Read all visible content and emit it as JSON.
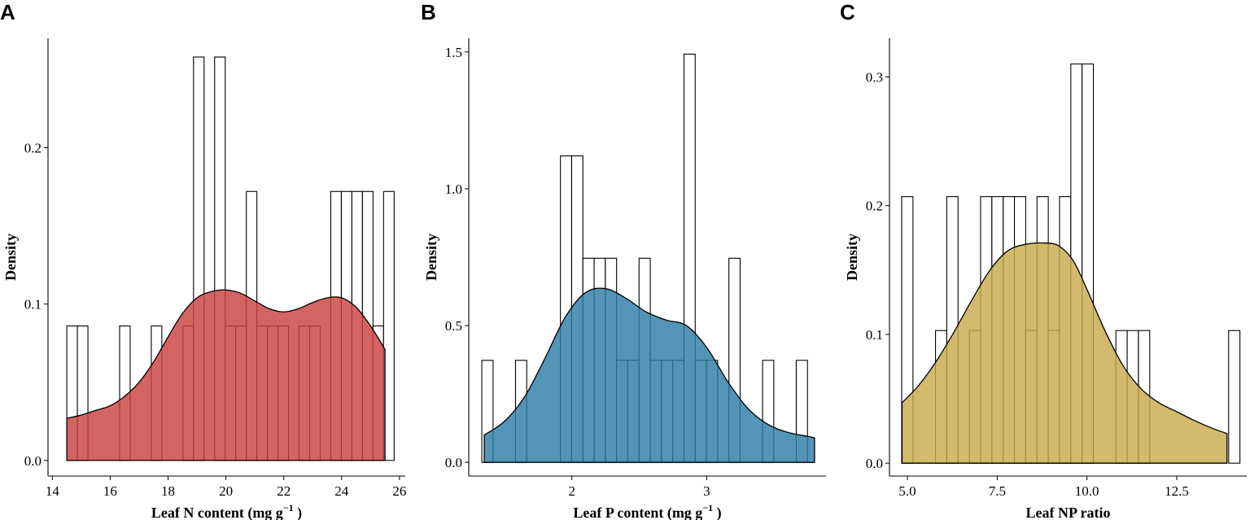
{
  "chart_data": [
    {
      "type": "histogram_density",
      "panel_label": "A",
      "xlabel_main": "Leaf N content (mg  g",
      "xlabel_sup": "−1",
      "xlabel_tail": " )",
      "ylabel": "Density",
      "fill_color": "#CB4240",
      "xlim": [
        13.85,
        26.2
      ],
      "ylim": [
        -0.01,
        0.27
      ],
      "x_ticks": [
        14,
        16,
        18,
        20,
        22,
        24,
        26
      ],
      "y_ticks": [
        0.0,
        0.1,
        0.2
      ],
      "y_tick_labels": [
        "0.0",
        "0.1",
        "0.2"
      ],
      "bin_start": 14.5,
      "bin_width": 0.365,
      "bar_heights": [
        0.086,
        0.086,
        0,
        0,
        0,
        0.086,
        0,
        0,
        0.086,
        0,
        0,
        0.086,
        0.258,
        0,
        0.258,
        0.086,
        0.086,
        0.172,
        0.086,
        0.086,
        0.086,
        0,
        0.086,
        0.086,
        0,
        0.172,
        0.172,
        0.172,
        0.172,
        0.086,
        0.172
      ],
      "density_x": [
        14.5,
        15.0,
        15.5,
        16.0,
        16.5,
        17.0,
        17.5,
        18.0,
        18.5,
        19.0,
        19.5,
        20.0,
        20.5,
        21.0,
        21.5,
        22.0,
        22.5,
        23.0,
        23.5,
        24.0,
        24.5,
        25.0,
        25.5
      ],
      "density_y": [
        0.027,
        0.029,
        0.032,
        0.035,
        0.041,
        0.05,
        0.063,
        0.079,
        0.094,
        0.104,
        0.108,
        0.109,
        0.107,
        0.102,
        0.097,
        0.095,
        0.097,
        0.101,
        0.104,
        0.104,
        0.098,
        0.086,
        0.071
      ]
    },
    {
      "type": "histogram_density",
      "panel_label": "B",
      "xlabel_main": "Leaf P content (mg  g",
      "xlabel_sup": "−1",
      "xlabel_tail": " )",
      "ylabel": "Density",
      "fill_color": "#2E7CA6",
      "xlim": [
        1.235,
        3.885
      ],
      "ylim": [
        -0.05,
        1.55
      ],
      "x_ticks": [
        2,
        3
      ],
      "y_ticks": [
        0.0,
        0.5,
        1.0,
        1.5
      ],
      "y_tick_labels": [
        "0.0",
        "0.5",
        "1.0",
        "1.5"
      ],
      "bin_start": 1.332,
      "bin_width": 0.0833,
      "bar_heights": [
        0.373,
        0,
        0,
        0.373,
        0,
        0,
        0,
        1.12,
        1.12,
        0.746,
        0.746,
        0.746,
        0.373,
        0.373,
        0.746,
        0.373,
        0.373,
        0.373,
        1.492,
        0.373,
        0.373,
        0,
        0.746,
        0,
        0,
        0.373,
        0,
        0,
        0.373
      ],
      "density_x": [
        1.35,
        1.5,
        1.65,
        1.8,
        1.95,
        2.1,
        2.25,
        2.4,
        2.55,
        2.7,
        2.85,
        3.0,
        3.15,
        3.3,
        3.45,
        3.6,
        3.75,
        3.8
      ],
      "density_y": [
        0.1,
        0.15,
        0.24,
        0.38,
        0.53,
        0.62,
        0.635,
        0.6,
        0.55,
        0.52,
        0.5,
        0.42,
        0.3,
        0.2,
        0.14,
        0.11,
        0.095,
        0.09
      ]
    },
    {
      "type": "histogram_density",
      "panel_label": "C",
      "xlabel_main": "Leaf NP ratio",
      "xlabel_sup": "",
      "xlabel_tail": "",
      "ylabel": "Density",
      "fill_color": "#C8AA4A",
      "xlim": [
        4.5,
        14.45
      ],
      "ylim": [
        -0.01,
        0.33
      ],
      "x_ticks": [
        5.0,
        7.5,
        10.0,
        12.5
      ],
      "x_tick_labels": [
        "5.0",
        "7.5",
        "10.0",
        "12.5"
      ],
      "y_ticks": [
        0.0,
        0.1,
        0.2,
        0.3
      ],
      "y_tick_labels": [
        "0.0",
        "0.1",
        "0.2",
        "0.3"
      ],
      "bin_start": 4.84,
      "bin_width": 0.314,
      "bar_heights": [
        0.207,
        0,
        0,
        0.103,
        0.207,
        0,
        0.103,
        0.207,
        0.207,
        0.207,
        0.207,
        0.103,
        0.207,
        0.103,
        0.207,
        0.31,
        0.31,
        0,
        0,
        0.103,
        0.103,
        0.103,
        0,
        0,
        0,
        0,
        0,
        0,
        0,
        0.103
      ],
      "density_x": [
        4.85,
        5.3,
        5.8,
        6.3,
        6.8,
        7.3,
        7.8,
        8.3,
        8.8,
        9.2,
        9.6,
        10.0,
        10.5,
        11.0,
        11.5,
        12.0,
        12.5,
        13.0,
        13.5,
        13.9
      ],
      "density_y": [
        0.047,
        0.06,
        0.079,
        0.102,
        0.127,
        0.15,
        0.165,
        0.17,
        0.171,
        0.169,
        0.158,
        0.135,
        0.103,
        0.076,
        0.058,
        0.047,
        0.04,
        0.033,
        0.027,
        0.023
      ]
    }
  ]
}
